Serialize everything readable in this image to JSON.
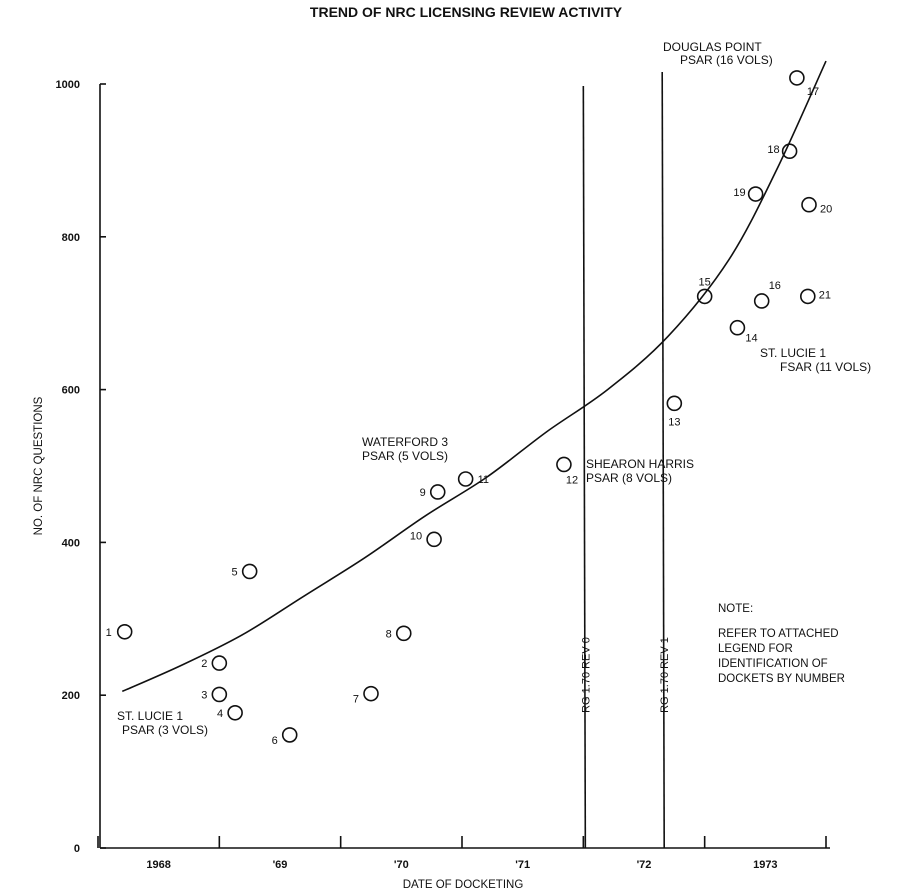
{
  "chart_data": {
    "type": "scatter",
    "title": "TREND OF NRC LICENSING REVIEW ACTIVITY",
    "xlabel": "DATE OF DOCKETING",
    "ylabel": "NO. OF NRC QUESTIONS",
    "x_tick_labels": [
      {
        "label": "1968",
        "x": 1968.5
      },
      {
        "label": "'69",
        "x": 1969.5
      },
      {
        "label": "'70",
        "x": 1970.5
      },
      {
        "label": "'71",
        "x": 1971.5
      },
      {
        "label": "'72",
        "x": 1972.5
      },
      {
        "label": "1973",
        "x": 1973.5
      }
    ],
    "x_boundaries": [
      1968,
      1969,
      1970,
      1971,
      1972,
      1973,
      1974
    ],
    "xlim": [
      1968,
      1974
    ],
    "ylim": [
      0,
      1000
    ],
    "y_ticks": [
      0,
      200,
      400,
      600,
      800,
      1000
    ],
    "grid": false,
    "points": [
      {
        "label": "1",
        "x": 1968.22,
        "y": 283
      },
      {
        "label": "2",
        "x": 1969.0,
        "y": 242
      },
      {
        "label": "3",
        "x": 1969.0,
        "y": 201
      },
      {
        "label": "4",
        "x": 1969.13,
        "y": 177
      },
      {
        "label": "5",
        "x": 1969.25,
        "y": 362
      },
      {
        "label": "6",
        "x": 1969.58,
        "y": 148
      },
      {
        "label": "7",
        "x": 1970.25,
        "y": 202
      },
      {
        "label": "8",
        "x": 1970.52,
        "y": 281
      },
      {
        "label": "9",
        "x": 1970.8,
        "y": 466
      },
      {
        "label": "10",
        "x": 1970.77,
        "y": 404
      },
      {
        "label": "11",
        "x": 1971.03,
        "y": 483
      },
      {
        "label": "12",
        "x": 1971.84,
        "y": 502
      },
      {
        "label": "13",
        "x": 1972.75,
        "y": 582
      },
      {
        "label": "14",
        "x": 1973.27,
        "y": 681
      },
      {
        "label": "15",
        "x": 1973.0,
        "y": 722
      },
      {
        "label": "16",
        "x": 1973.47,
        "y": 716
      },
      {
        "label": "17",
        "x": 1973.76,
        "y": 1008
      },
      {
        "label": "18",
        "x": 1973.7,
        "y": 912
      },
      {
        "label": "19",
        "x": 1973.42,
        "y": 856
      },
      {
        "label": "20",
        "x": 1973.86,
        "y": 842
      },
      {
        "label": "21",
        "x": 1973.85,
        "y": 722
      }
    ],
    "trend_curve": [
      [
        1968.2,
        205
      ],
      [
        1968.7,
        240
      ],
      [
        1969.2,
        280
      ],
      [
        1969.7,
        330
      ],
      [
        1970.2,
        380
      ],
      [
        1970.7,
        435
      ],
      [
        1971.2,
        485
      ],
      [
        1971.7,
        545
      ],
      [
        1972.2,
        600
      ],
      [
        1972.7,
        670
      ],
      [
        1973.2,
        770
      ],
      [
        1973.6,
        890
      ],
      [
        1974.0,
        1030
      ]
    ],
    "vertical_lines": [
      {
        "label": "RG 1.70 REV 0",
        "x": 1972.0
      },
      {
        "label": "RG 1.70 REV 1",
        "x": 1972.65
      }
    ],
    "annotations": [
      {
        "lines": [
          "DOUGLAS POINT",
          "PSAR (16 VOLS)"
        ]
      },
      {
        "lines": [
          "ST. LUCIE 1",
          "FSAR (11 VOLS)"
        ]
      },
      {
        "lines": [
          "WATERFORD 3",
          "PSAR (5 VOLS)"
        ]
      },
      {
        "lines": [
          "SHEARON HARRIS",
          "PSAR (8 VOLS)"
        ]
      },
      {
        "lines": [
          "ST. LUCIE 1",
          "PSAR (3 VOLS)"
        ]
      }
    ],
    "note": {
      "heading": "NOTE:",
      "lines": [
        "REFER TO ATTACHED",
        "LEGEND FOR",
        "IDENTIFICATION OF",
        "DOCKETS BY NUMBER"
      ]
    }
  }
}
